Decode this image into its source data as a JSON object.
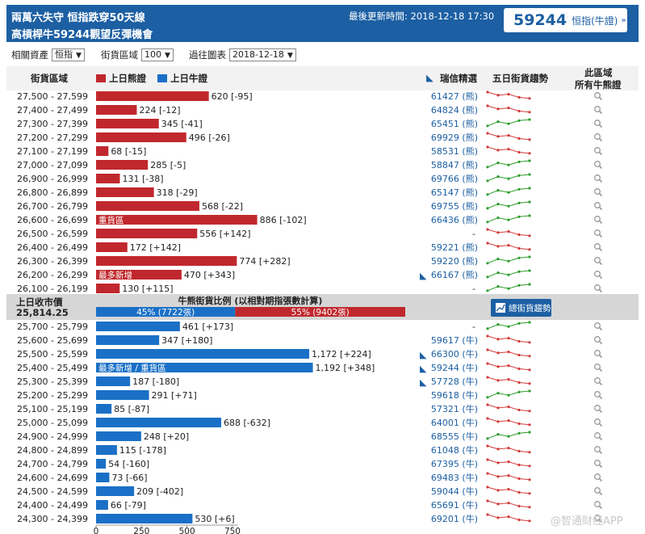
{
  "header": {
    "title_line1": "兩萬六失守 恒指跌穿50天線",
    "title_line2": "高槓桿牛59244觀望反彈機會",
    "update_label": "最後更新時間: 2018-12-18 17:30",
    "badge_number": "59244",
    "badge_label": "恒指(牛證)",
    "badge_arrow": "»"
  },
  "filters": {
    "asset_label": "相關資產",
    "asset_value": "恒指",
    "range_label": "街貨區域",
    "range_value": "100",
    "chart_label": "過往圖表",
    "chart_value": "2018-12-18"
  },
  "columns": {
    "zone": "街貨區域",
    "bear_legend": "上日熊證",
    "bull_legend": "上日牛證",
    "ubs": "瑞信精選",
    "trend": "五日街貨趨勢",
    "all_line1": "此區域",
    "all_line2": "所有牛熊證"
  },
  "middle": {
    "close_label": "上日收市價",
    "close_value": "25,814.25",
    "ratio_title": "牛熊街貨比例 (以相對期指張數計算)",
    "bull_pct": 0.45,
    "bull_text": "45% (7722張)",
    "bear_text": "55% (9402張)",
    "trend_button": "總街貨趨勢"
  },
  "colors": {
    "bear": "#c0282d",
    "bull": "#1a70c6",
    "link": "#1c5fa3",
    "up": "#2a9d2a",
    "down": "#d33a3a"
  },
  "chart_data": {
    "type": "bar",
    "xticks": [
      0,
      250,
      500,
      750
    ],
    "bear_rows": [
      {
        "zone": "27,500 - 27,599",
        "value": 620,
        "label": "620 [-95]",
        "code": "61427 (熊)",
        "trend": "down"
      },
      {
        "zone": "27,400 - 27,499",
        "value": 224,
        "label": "224 [-12]",
        "code": "64824 (熊)",
        "trend": "down"
      },
      {
        "zone": "27,300 - 27,399",
        "value": 345,
        "label": "345 [-41]",
        "code": "65451 (熊)",
        "trend": "up"
      },
      {
        "zone": "27,200 - 27,299",
        "value": 496,
        "label": "496 [-26]",
        "code": "69929 (熊)",
        "trend": "down"
      },
      {
        "zone": "27,100 - 27,199",
        "value": 68,
        "label": "68 [-15]",
        "code": "58531 (熊)",
        "trend": "down"
      },
      {
        "zone": "27,000 - 27,099",
        "value": 285,
        "label": "285 [-5]",
        "code": "58847 (熊)",
        "trend": "up"
      },
      {
        "zone": "26,900 - 26,999",
        "value": 131,
        "label": "131 [-38]",
        "code": "69766 (熊)",
        "trend": "up"
      },
      {
        "zone": "26,800 - 26,899",
        "value": 318,
        "label": "318 [-29]",
        "code": "65147 (熊)",
        "trend": "up"
      },
      {
        "zone": "26,700 - 26,799",
        "value": 568,
        "label": "568 [-22]",
        "code": "69755 (熊)",
        "trend": "up"
      },
      {
        "zone": "26,600 - 26,699",
        "value": 886,
        "label": "886 [-102]",
        "code": "66436 (熊)",
        "trend": "up",
        "tag": "重貨區"
      },
      {
        "zone": "26,500 - 26,599",
        "value": 556,
        "label": "556 [+142]",
        "code": "-",
        "trend": "down"
      },
      {
        "zone": "26,400 - 26,499",
        "value": 172,
        "label": "172 [+142]",
        "code": "59221 (熊)",
        "trend": "down"
      },
      {
        "zone": "26,300 - 26,399",
        "value": 774,
        "label": "774 [+282]",
        "code": "59220 (熊)",
        "trend": "up"
      },
      {
        "zone": "26,200 - 26,299",
        "value": 470,
        "label": "470 [+343]",
        "code": "66167 (熊)",
        "trend": "up",
        "tag": "最多新增",
        "flag": true
      },
      {
        "zone": "26,100 - 26,199",
        "value": 130,
        "label": "130 [+115]",
        "code": "-",
        "trend": "up"
      }
    ],
    "bull_rows": [
      {
        "zone": "25,700 - 25,799",
        "value": 461,
        "label": "461 [+173]",
        "code": "-",
        "trend": "up"
      },
      {
        "zone": "25,600 - 25,699",
        "value": 347,
        "label": "347 [+180]",
        "code": "59617 (牛)",
        "trend": "down"
      },
      {
        "zone": "25,500 - 25,599",
        "value": 1172,
        "label": "1,172 [+224]",
        "code": "66300 (牛)",
        "trend": "down",
        "flag": true
      },
      {
        "zone": "25,400 - 25,499",
        "value": 1192,
        "label": "1,192 [+348]",
        "code": "59244 (牛)",
        "trend": "down",
        "tag": "最多新增 / 重貨區",
        "flag": true
      },
      {
        "zone": "25,300 - 25,399",
        "value": 187,
        "label": "187 [-180]",
        "code": "57728 (牛)",
        "trend": "down",
        "flag": true
      },
      {
        "zone": "25,200 - 25,299",
        "value": 291,
        "label": "291 [+71]",
        "code": "59618 (牛)",
        "trend": "up"
      },
      {
        "zone": "25,100 - 25,199",
        "value": 85,
        "label": "85 [-87]",
        "code": "57321 (牛)",
        "trend": "down"
      },
      {
        "zone": "25,000 - 25,099",
        "value": 688,
        "label": "688 [-632]",
        "code": "64001 (牛)",
        "trend": "down"
      },
      {
        "zone": "24,900 - 24,999",
        "value": 248,
        "label": "248 [+20]",
        "code": "68555 (牛)",
        "trend": "up"
      },
      {
        "zone": "24,800 - 24,899",
        "value": 115,
        "label": "115 [-178]",
        "code": "61048 (牛)",
        "trend": "down"
      },
      {
        "zone": "24,700 - 24,799",
        "value": 54,
        "label": "54 [-160]",
        "code": "67395 (牛)",
        "trend": "down"
      },
      {
        "zone": "24,600 - 24,699",
        "value": 73,
        "label": "73 [-66]",
        "code": "69483 (牛)",
        "trend": "down"
      },
      {
        "zone": "24,500 - 24,599",
        "value": 209,
        "label": "209 [-402]",
        "code": "59044 (牛)",
        "trend": "down"
      },
      {
        "zone": "24,400 - 24,499",
        "value": 66,
        "label": "66 [-79]",
        "code": "65691 (牛)",
        "trend": "down"
      },
      {
        "zone": "24,300 - 24,399",
        "value": 530,
        "label": "530 [+6]",
        "code": "69201 (牛)",
        "trend": "down"
      }
    ]
  },
  "watermark": "@智通财经APP"
}
